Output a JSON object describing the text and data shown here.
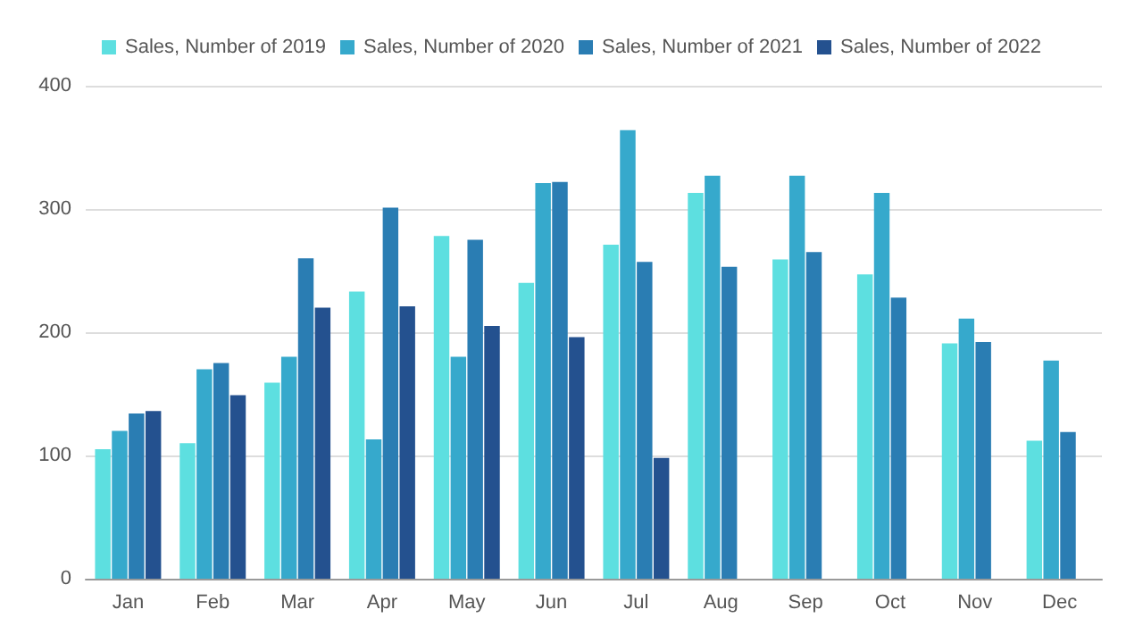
{
  "chart_data": {
    "type": "bar",
    "categories": [
      "Jan",
      "Feb",
      "Mar",
      "Apr",
      "May",
      "Jun",
      "Jul",
      "Aug",
      "Sep",
      "Oct",
      "Nov",
      "Dec"
    ],
    "series": [
      {
        "name": "Sales, Number of 2019",
        "color": "#5ddfe0",
        "values": [
          105,
          110,
          159,
          233,
          278,
          240,
          271,
          313,
          259,
          247,
          191,
          112
        ]
      },
      {
        "name": "Sales, Number of 2020",
        "color": "#36a9cc",
        "values": [
          120,
          170,
          180,
          113,
          180,
          321,
          364,
          327,
          327,
          313,
          211,
          177
        ]
      },
      {
        "name": "Sales, Number of 2021",
        "color": "#2a7db3",
        "values": [
          134,
          175,
          260,
          301,
          275,
          322,
          257,
          253,
          265,
          228,
          192,
          119
        ]
      },
      {
        "name": "Sales, Number of 2022",
        "color": "#24518f",
        "values": [
          136,
          149,
          220,
          221,
          205,
          196,
          98,
          null,
          null,
          null,
          null,
          null
        ]
      }
    ],
    "ylim": [
      0,
      400
    ],
    "yticks": [
      0,
      100,
      200,
      300,
      400
    ],
    "grid": "y",
    "legend": "top"
  }
}
